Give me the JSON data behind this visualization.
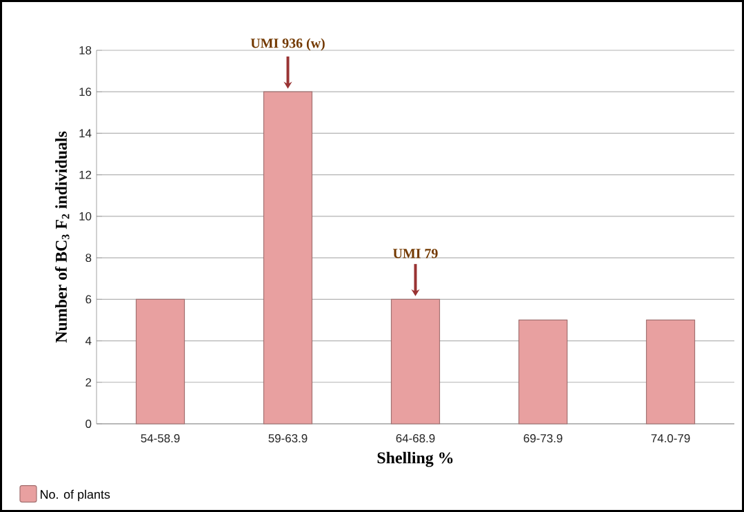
{
  "chart_data": {
    "type": "bar",
    "categories": [
      "54-58.9",
      "59-63.9",
      "64-68.9",
      "69-73.9",
      "74.0-79"
    ],
    "series": [
      {
        "name": "No. of plants",
        "color": "#e8a0a0",
        "values": [
          6,
          16,
          6,
          5,
          5
        ]
      }
    ],
    "xlabel": "Shelling %",
    "ylabel": "Number of BC$_{3}$ F$_{2}$ individuals",
    "ylim": [
      0,
      18
    ],
    "yticks": [
      0,
      2,
      4,
      6,
      8,
      10,
      12,
      14,
      16,
      18
    ],
    "grid": "y",
    "legend": "bottom left",
    "annotations": [
      {
        "text": "UMI 936 (w)",
        "x": "59-63.9",
        "y": 16
      },
      {
        "text": "UMI 79",
        "x": "64-68.9",
        "y": 6
      }
    ]
  }
}
